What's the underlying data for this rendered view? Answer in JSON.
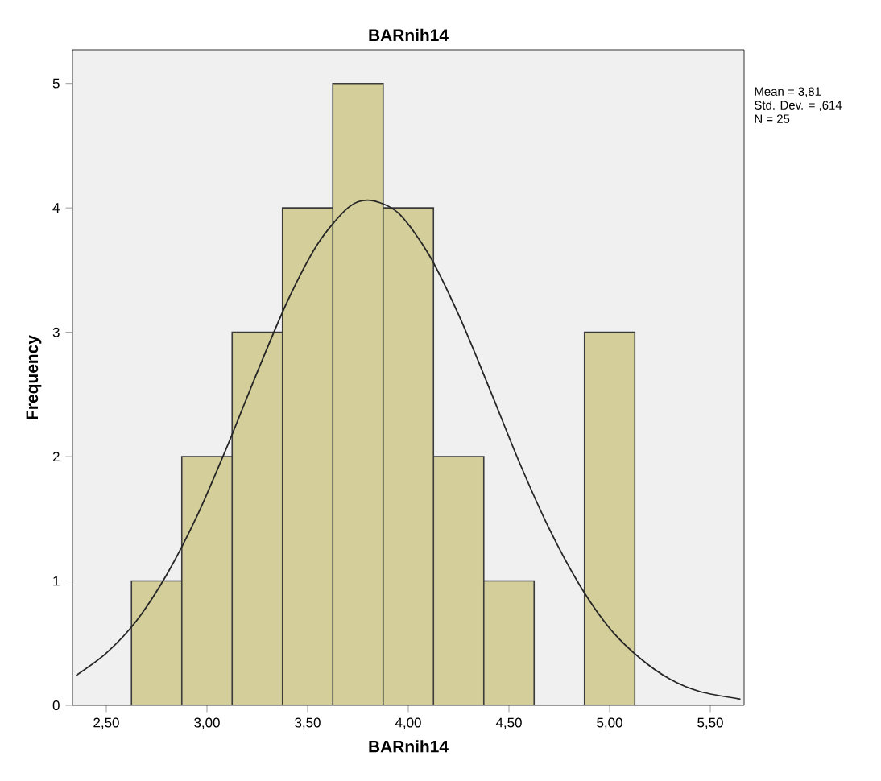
{
  "chart_data": {
    "type": "histogram",
    "title": "BARnih14",
    "xlabel": "BARnih14",
    "ylabel": "Frequency",
    "bins": [
      2.625,
      2.875,
      3.125,
      3.375,
      3.625,
      3.875,
      4.125,
      4.375,
      4.625,
      4.875,
      5.125
    ],
    "values": [
      1,
      2,
      3,
      4,
      5,
      4,
      2,
      1,
      0,
      3
    ],
    "color": "#d3ce9a",
    "series": [
      {
        "type": "line",
        "color": "#262626",
        "x": [
          2.35,
          2.5,
          2.65,
          2.8,
          2.95,
          3.1,
          3.25,
          3.4,
          3.55,
          3.7,
          3.81,
          3.95,
          4.1,
          4.25,
          4.4,
          4.55,
          4.7,
          4.85,
          5.0,
          5.15,
          5.3,
          5.45,
          5.65
        ],
        "values": [
          0.24,
          0.42,
          0.68,
          1.05,
          1.52,
          2.08,
          2.68,
          3.25,
          3.71,
          4.0,
          4.06,
          3.96,
          3.63,
          3.14,
          2.56,
          1.96,
          1.42,
          0.97,
          0.62,
          0.38,
          0.21,
          0.11,
          0.05
        ]
      }
    ],
    "xlim": [
      2.332,
      5.668
    ],
    "ylim": [
      0,
      5.27
    ],
    "xticks": [
      {
        "value": 2.5,
        "label": "2,50"
      },
      {
        "value": 3.0,
        "label": "3,00"
      },
      {
        "value": 3.5,
        "label": "3,50"
      },
      {
        "value": 4.0,
        "label": "4,00"
      },
      {
        "value": 4.5,
        "label": "4,50"
      },
      {
        "value": 5.0,
        "label": "5,00"
      },
      {
        "value": 5.5,
        "label": "5,50"
      }
    ],
    "yticks": [
      0,
      1,
      2,
      3,
      4,
      5
    ],
    "annotations": [
      "Mean = 3,81",
      "Std. Dev. = ,614",
      "N = 25"
    ]
  }
}
